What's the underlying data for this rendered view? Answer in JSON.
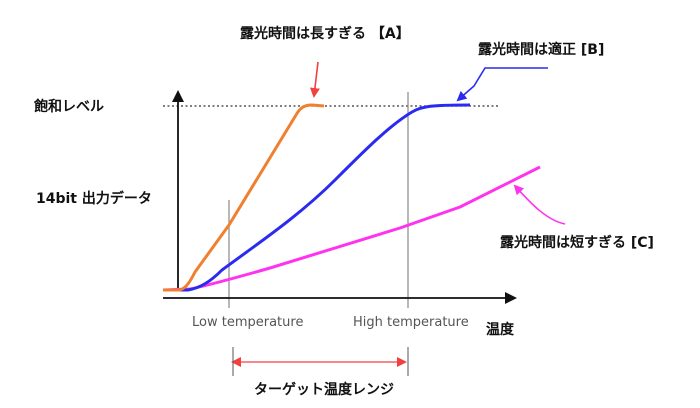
{
  "labels": {
    "saturation": "飽和レベル",
    "output": "14bit 出力データ",
    "x_axis": "温度",
    "low_temp": "Low temperature",
    "high_temp": "High temperature",
    "target_range": "ターゲット温度レンジ"
  },
  "curves": {
    "a": {
      "label": "露光時間は長すぎる 【A】",
      "color": "#f08030"
    },
    "b": {
      "label": "露光時間は適正 [B]",
      "color": "#2a2af0"
    },
    "c": {
      "label": "露光時間は短すぎる [C]",
      "color": "#ff33ee"
    }
  },
  "colors": {
    "axis": "#111111",
    "guide": "#888888",
    "arrow_a": "#f04040",
    "arrow_b": "#2a2af0",
    "arrow_c": "#ff33ee",
    "range_arrow": "#f04040"
  }
}
